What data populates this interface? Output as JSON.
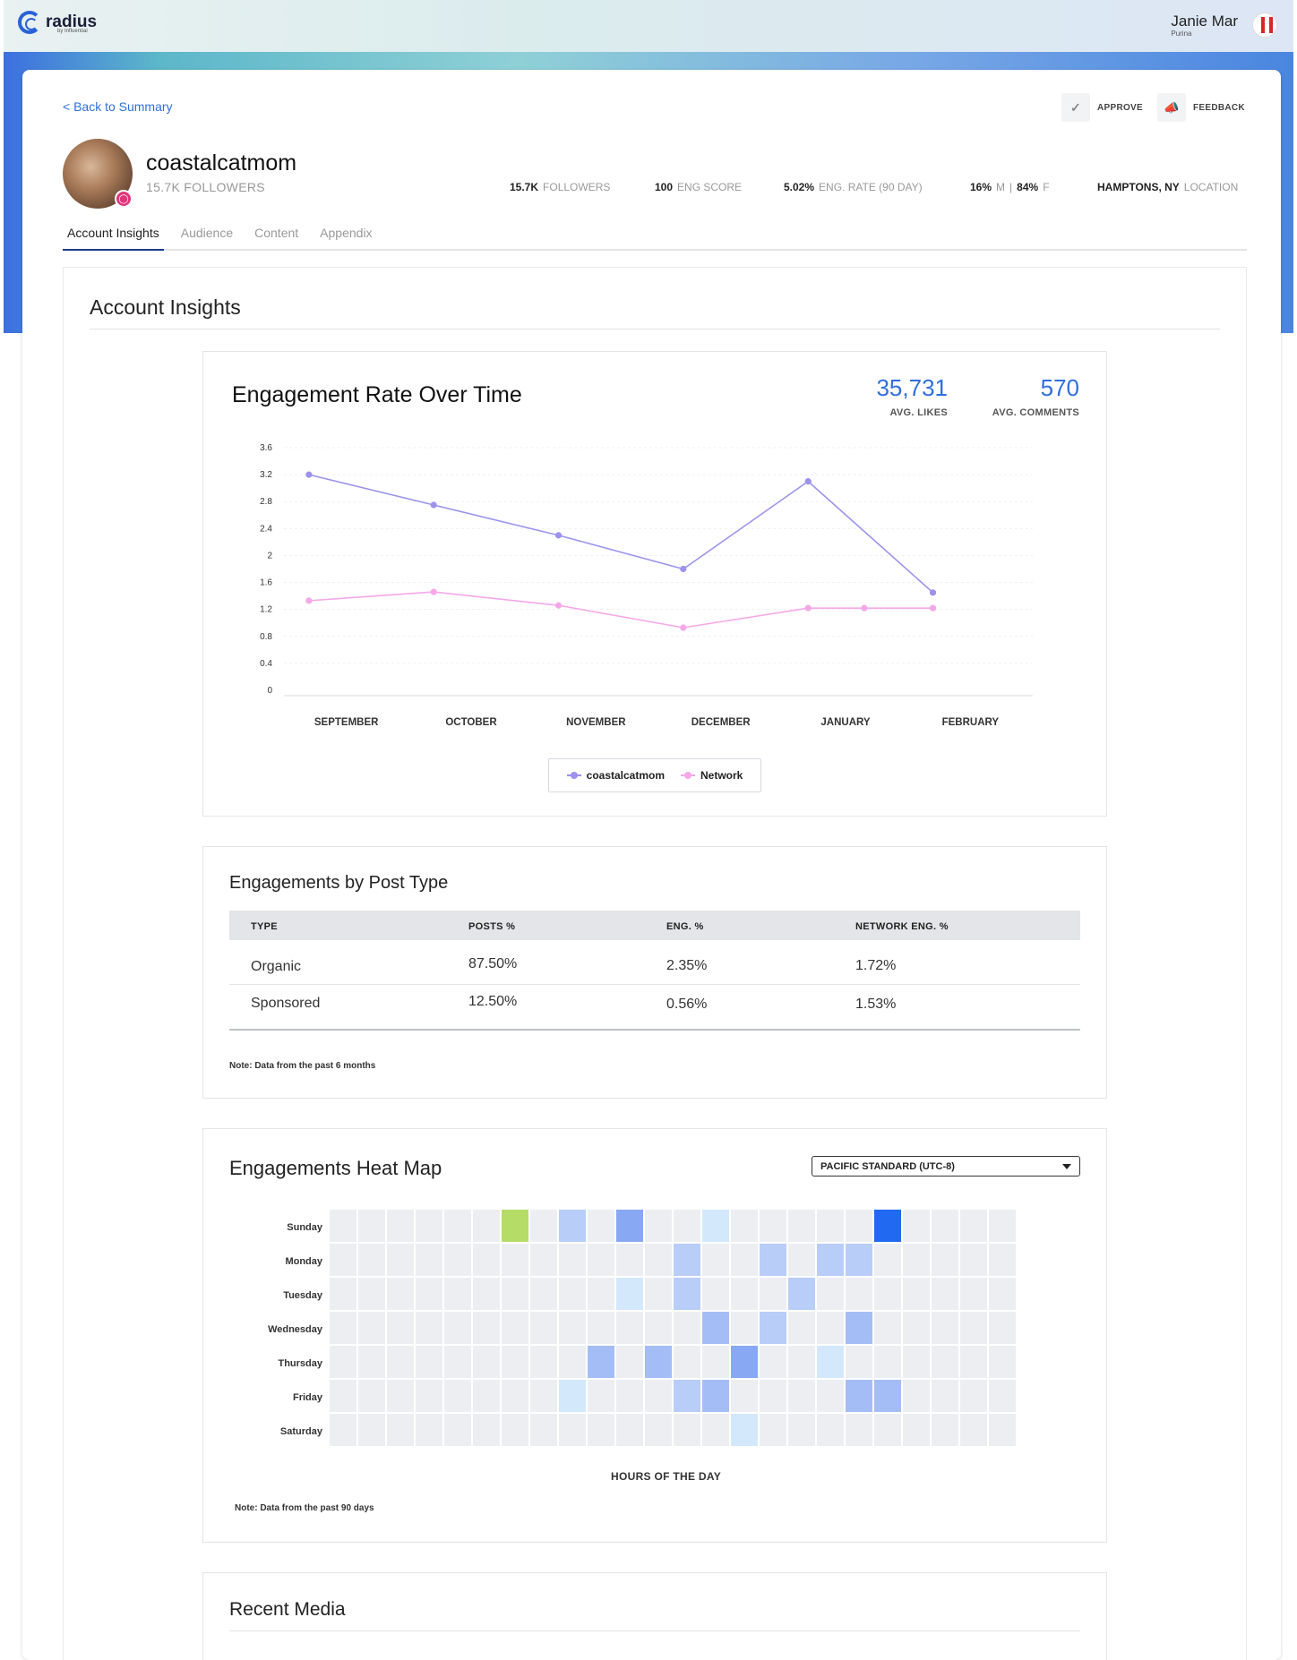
{
  "app": {
    "logo_text": "radius",
    "logo_sub": "by Influential",
    "user_name": "Janie Mar",
    "user_brand": "Purina"
  },
  "nav": {
    "back_label": "< Back to Summary",
    "approve_label": "APPROVE",
    "feedback_label": "FEEDBACK"
  },
  "profile": {
    "handle": "coastalcatmom",
    "followers_sub": "15.7K FOLLOWERS",
    "stats": {
      "followers_value": "15.7K",
      "followers_label": "FOLLOWERS",
      "eng_score_value": "100",
      "eng_score_label": "ENG SCORE",
      "eng_rate_value": "5.02%",
      "eng_rate_label": "ENG. RATE (90 DAY)",
      "male_value": "16%",
      "male_label": "M",
      "female_value": "84%",
      "female_label": "F",
      "location_value": "HAMPTONS, NY",
      "location_label": "LOCATION"
    }
  },
  "tabs": [
    {
      "label": "Account Insights",
      "active": true
    },
    {
      "label": "Audience",
      "active": false
    },
    {
      "label": "Content",
      "active": false
    },
    {
      "label": "Appendix",
      "active": false
    }
  ],
  "section_title": "Account Insights",
  "engagement": {
    "title": "Engagement Rate Over Time",
    "avg_likes_value": "35,731",
    "avg_likes_label": "AVG. LIKES",
    "avg_comments_value": "570",
    "avg_comments_label": "AVG. COMMENTS"
  },
  "chart_data": {
    "type": "line",
    "categories": [
      "SEPTEMBER",
      "OCTOBER",
      "NOVEMBER",
      "DECEMBER",
      "JANUARY",
      "FEBRUARY"
    ],
    "yticks": [
      "0",
      "0.4",
      "0.8",
      "1.2",
      "1.6",
      "2",
      "2.4",
      "2.8",
      "3.2",
      "3.6"
    ],
    "ylim": [
      0,
      3.6
    ],
    "grid": true,
    "legend_position": "bottom",
    "series": [
      {
        "name": "coastalcatmom",
        "color": "#9b93ec",
        "points": [
          [
            0.2,
            3.2
          ],
          [
            1.2,
            2.75
          ],
          [
            2.2,
            2.3
          ],
          [
            3.2,
            1.8
          ],
          [
            4.2,
            3.1
          ],
          [
            5.2,
            1.45
          ]
        ]
      },
      {
        "name": "Network",
        "color": "#f5a8e8",
        "points": [
          [
            0.2,
            1.33
          ],
          [
            1.2,
            1.46
          ],
          [
            2.2,
            1.26
          ],
          [
            3.2,
            0.93
          ],
          [
            4.2,
            1.22
          ],
          [
            4.65,
            1.22
          ],
          [
            5.2,
            1.22
          ]
        ]
      }
    ]
  },
  "post_type": {
    "title": "Engagements by Post Type",
    "headers": [
      "TYPE",
      "POSTS %",
      "ENG. %",
      "NETWORK ENG. %"
    ],
    "rows": [
      [
        "Organic",
        "87.50%",
        "2.35%",
        "1.72%"
      ],
      [
        "Sponsored",
        "12.50%",
        "0.56%",
        "1.53%"
      ]
    ],
    "note": "Note: Data from the past 6 months"
  },
  "heatmap": {
    "title": "Engagements Heat Map",
    "timezone": "PACIFIC STANDARD (UTC-8)",
    "days": [
      "Sunday",
      "Monday",
      "Tuesday",
      "Wednesday",
      "Thursday",
      "Friday",
      "Saturday"
    ],
    "x_label": "HOURS OF THE DAY",
    "note": "Note: Data from the past 90 days",
    "colors": {
      "0": "#eceef1",
      "1": "#d4e8fb",
      "2": "#b8cdf8",
      "3": "#a5bdf6",
      "4": "#88a8f3",
      "5": "#2169f0",
      "g": "#b5dc67"
    },
    "cells": [
      [
        "0",
        "0",
        "0",
        "0",
        "0",
        "0",
        "g",
        "0",
        "2",
        "0",
        "4",
        "0",
        "0",
        "1",
        "0",
        "0",
        "0",
        "0",
        "0",
        "5",
        "0",
        "0",
        "0",
        "0"
      ],
      [
        "0",
        "0",
        "0",
        "0",
        "0",
        "0",
        "0",
        "0",
        "0",
        "0",
        "0",
        "0",
        "2",
        "0",
        "0",
        "2",
        "0",
        "2",
        "2",
        "0",
        "0",
        "0",
        "0",
        "0"
      ],
      [
        "0",
        "0",
        "0",
        "0",
        "0",
        "0",
        "0",
        "0",
        "0",
        "0",
        "1",
        "0",
        "2",
        "0",
        "0",
        "0",
        "2",
        "0",
        "0",
        "0",
        "0",
        "0",
        "0",
        "0"
      ],
      [
        "0",
        "0",
        "0",
        "0",
        "0",
        "0",
        "0",
        "0",
        "0",
        "0",
        "0",
        "0",
        "0",
        "3",
        "0",
        "2",
        "0",
        "0",
        "3",
        "0",
        "0",
        "0",
        "0",
        "0"
      ],
      [
        "0",
        "0",
        "0",
        "0",
        "0",
        "0",
        "0",
        "0",
        "0",
        "3",
        "0",
        "3",
        "0",
        "0",
        "4",
        "0",
        "0",
        "1",
        "0",
        "0",
        "0",
        "0",
        "0",
        "0"
      ],
      [
        "0",
        "0",
        "0",
        "0",
        "0",
        "0",
        "0",
        "0",
        "1",
        "0",
        "0",
        "0",
        "2",
        "3",
        "0",
        "0",
        "0",
        "0",
        "3",
        "3",
        "0",
        "0",
        "0",
        "0"
      ],
      [
        "0",
        "0",
        "0",
        "0",
        "0",
        "0",
        "0",
        "0",
        "0",
        "0",
        "0",
        "0",
        "0",
        "0",
        "1",
        "0",
        "0",
        "0",
        "0",
        "0",
        "0",
        "0",
        "0",
        "0"
      ]
    ]
  },
  "recent_media": {
    "title": "Recent Media"
  }
}
